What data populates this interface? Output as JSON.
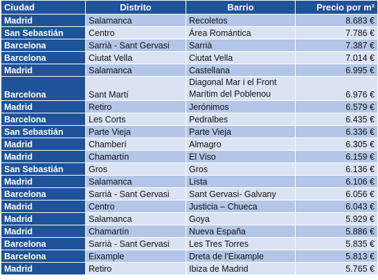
{
  "headers": {
    "ciudad": "Ciudad",
    "distrito": "Distrito",
    "barrio": "Barrio",
    "precio": "Precio por m²"
  },
  "rows": [
    {
      "ciudad": "Madrid",
      "distrito": "Salamanca",
      "barrio": "Recoletos",
      "precio": "8.683 €"
    },
    {
      "ciudad": "San Sebastián",
      "distrito": "Centro",
      "barrio": "Área Romántica",
      "precio": "7.786 €"
    },
    {
      "ciudad": "Barcelona",
      "distrito": "Sarrià - Sant Gervasi",
      "barrio": "Sarrià",
      "precio": "7.387 €"
    },
    {
      "ciudad": "Barcelona",
      "distrito": "Ciutat Vella",
      "barrio": "Ciutat Vella",
      "precio": "7.014 €"
    },
    {
      "ciudad": "Madrid",
      "distrito": "Salamanca",
      "barrio": "Castellana",
      "precio": "6.995 €"
    },
    {
      "ciudad": "Barcelona",
      "distrito": "Sant Martí",
      "barrio": "Diagonal Mar i el Front Marítim del Poblenou",
      "precio": "6.976 €"
    },
    {
      "ciudad": "Madrid",
      "distrito": "Retiro",
      "barrio": "Jerónimos",
      "precio": "6.579 €"
    },
    {
      "ciudad": "Barcelona",
      "distrito": "Les Corts",
      "barrio": "Pedralbes",
      "precio": "6.435 €"
    },
    {
      "ciudad": "San Sebastián",
      "distrito": "Parte Vieja",
      "barrio": "Parte Vieja",
      "precio": "6.336 €"
    },
    {
      "ciudad": "Madrid",
      "distrito": "Chamberí",
      "barrio": "Almagro",
      "precio": "6.305 €"
    },
    {
      "ciudad": "Madrid",
      "distrito": "Chamartín",
      "barrio": "El Viso",
      "precio": "6.159 €"
    },
    {
      "ciudad": "San Sebastián",
      "distrito": "Gros",
      "barrio": "Gros",
      "precio": "6.136 €"
    },
    {
      "ciudad": "Madrid",
      "distrito": "Salamanca",
      "barrio": "Lista",
      "precio": "6.106 €"
    },
    {
      "ciudad": "Barcelona",
      "distrito": "Sarrià - Sant Gervasi",
      "barrio": "Sant Gervasi- Galvany",
      "precio": "6.056 €"
    },
    {
      "ciudad": "Madrid",
      "distrito": "Centro",
      "barrio": "Justicia – Chueca",
      "precio": "6.043 €"
    },
    {
      "ciudad": "Madrid",
      "distrito": "Salamanca",
      "barrio": "Goya",
      "precio": "5.929 €"
    },
    {
      "ciudad": "Madrid",
      "distrito": "Chamartín",
      "barrio": "Nueva España",
      "precio": "5.886 €"
    },
    {
      "ciudad": "Barcelona",
      "distrito": "Sarrià - Sant Gervasi",
      "barrio": "Les Tres Torres",
      "precio": "5.835 €"
    },
    {
      "ciudad": "Barcelona",
      "distrito": "Eixample",
      "barrio": "Dreta de l'Eixample",
      "precio": "5.813 €"
    },
    {
      "ciudad": "Madrid",
      "distrito": "Retiro",
      "barrio": "Ibiza de Madrid",
      "precio": "5.765 €"
    }
  ]
}
